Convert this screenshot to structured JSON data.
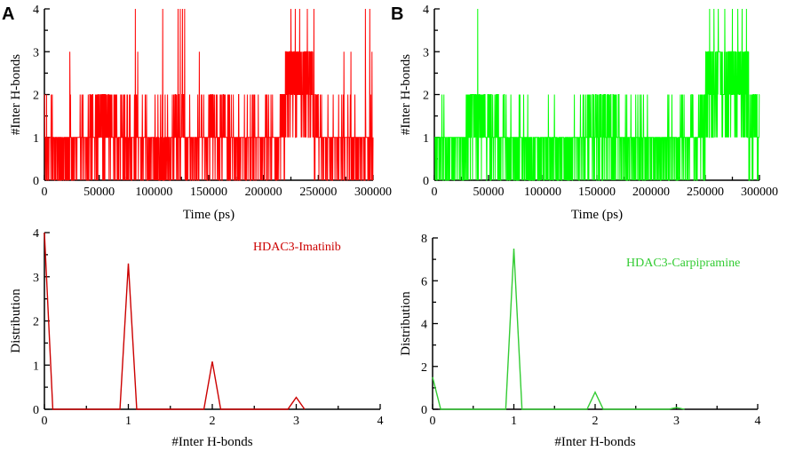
{
  "chart_data": [
    {
      "id": "A_top",
      "panel_label": "A",
      "type": "line",
      "color": "#ff0000",
      "xlabel": "Time (ps)",
      "ylabel": "#Inter H-bonds",
      "xlim": [
        0,
        300000
      ],
      "ylim": [
        0,
        4
      ],
      "xticks": [
        0,
        50000,
        100000,
        150000,
        200000,
        250000,
        300000
      ],
      "yticks": [
        0,
        1,
        2,
        3,
        4
      ],
      "series": [
        {
          "x_start": 0,
          "x_end": 300000,
          "samples": 1500,
          "spikes_to_4": [
            83000,
            108000,
            122000,
            124000,
            126000,
            128000,
            225000,
            229000,
            233000,
            240000,
            246000,
            293000,
            297000
          ],
          "dense_level3_ranges": [
            [
              220000,
              245000
            ]
          ],
          "dense_level2_ranges": [
            [
              40000,
              70000
            ],
            [
              118000,
              128000
            ],
            [
              150000,
              165000
            ],
            [
              215000,
              250000
            ]
          ],
          "note_values": "H-bond count series, integer values 0-4"
        }
      ]
    },
    {
      "id": "B_top",
      "panel_label": "B",
      "type": "line",
      "color": "#00ff00",
      "xlabel": "Time (ps)",
      "ylabel": "#Inter H-bonds",
      "xlim": [
        0,
        300000
      ],
      "ylim": [
        0,
        4
      ],
      "xticks": [
        0,
        50000,
        100000,
        150000,
        200000,
        250000,
        300000
      ],
      "yticks": [
        0,
        1,
        2,
        3,
        4
      ],
      "series": [
        {
          "x_start": 0,
          "x_end": 300000,
          "samples": 1500,
          "spikes_to_4": [
            40000,
            254000,
            258000,
            262000,
            268000,
            275000,
            280000,
            284000,
            288000
          ],
          "dense_level3_ranges": [
            [
              250000,
              290000
            ]
          ],
          "dense_level2_ranges": [
            [
              30000,
              60000
            ],
            [
              140000,
              170000
            ],
            [
              245000,
              300000
            ]
          ]
        }
      ]
    },
    {
      "id": "A_bottom",
      "type": "line",
      "color": "#cc0000",
      "xlabel": "#Inter H-bonds",
      "ylabel": "Distribution",
      "xlim": [
        0,
        4
      ],
      "ylim": [
        0,
        4
      ],
      "xticks": [
        0,
        1,
        2,
        3,
        4
      ],
      "yticks": [
        0,
        1,
        2,
        3,
        4
      ],
      "annotation": "HDAC3-Imatinib",
      "series": [
        {
          "name": "HDAC3-Imatinib",
          "x": [
            0,
            0.1,
            0.9,
            1,
            1.1,
            1.9,
            2,
            2.1,
            2.9,
            3,
            3.1
          ],
          "y": [
            4.0,
            0,
            0,
            3.3,
            0,
            0,
            1.08,
            0,
            0,
            0.27,
            0
          ]
        }
      ]
    },
    {
      "id": "B_bottom",
      "type": "line",
      "color": "#33cc33",
      "xlabel": "#Inter H-bonds",
      "ylabel": "Distribution",
      "xlim": [
        0,
        4
      ],
      "ylim": [
        0,
        8
      ],
      "xticks": [
        0,
        1,
        2,
        3,
        4
      ],
      "yticks": [
        0,
        2,
        4,
        6,
        8
      ],
      "annotation": "HDAC3-Carpipramine",
      "series": [
        {
          "name": "HDAC3-Carpipramine",
          "x": [
            0,
            0.1,
            0.9,
            1,
            1.1,
            1.9,
            2,
            2.1,
            2.9,
            3,
            3.1
          ],
          "y": [
            1.5,
            0,
            0,
            7.5,
            0,
            0,
            0.8,
            0,
            0,
            0.08,
            0
          ]
        }
      ]
    }
  ]
}
